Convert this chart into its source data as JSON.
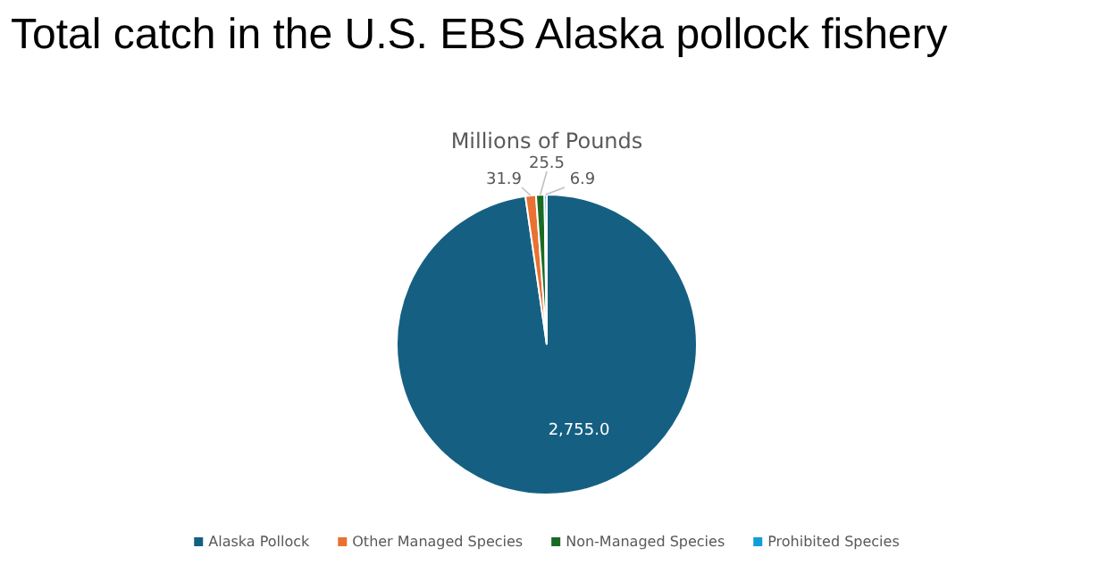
{
  "chart_data": {
    "type": "pie",
    "title": "Total catch in the U.S. EBS Alaska pollock fishery",
    "subtitle": "Millions of Pounds",
    "categories": [
      "Alaska Pollock",
      "Other Managed Species",
      "Non-Managed Species",
      "Prohibited Species"
    ],
    "values": [
      2755.0,
      31.9,
      25.5,
      6.9
    ],
    "value_labels": [
      "2,755.0",
      "31.9",
      "25.5",
      "6.9"
    ],
    "colors": [
      "#156082",
      "#e97132",
      "#196b24",
      "#0f9ed5"
    ],
    "legend": "bottom"
  }
}
